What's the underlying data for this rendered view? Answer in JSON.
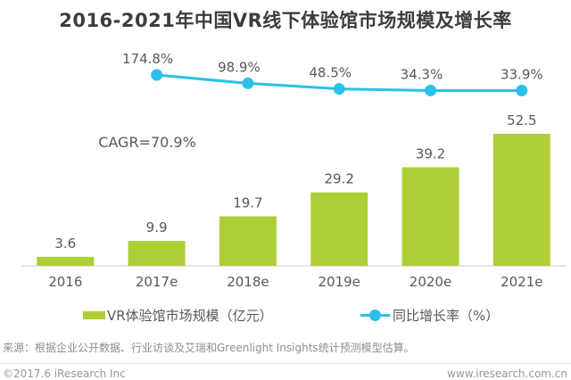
{
  "title": "2016-2021年中国VR线下体验馆市场规模及增长率",
  "chart_data": {
    "type": "bar+line combo",
    "title": "2016-2021年中国VR线下体验馆市场规模及增长率",
    "categories": [
      "2016",
      "2017e",
      "2018e",
      "2019e",
      "2020e",
      "2021e"
    ],
    "series": [
      {
        "name": "VR体验馆市场规模（亿元）",
        "type": "bar",
        "values": [
          3.6,
          9.9,
          19.7,
          29.2,
          39.2,
          52.5
        ],
        "color": "#aecf38"
      },
      {
        "name": "同比增长率（%）",
        "type": "line",
        "values": [
          null,
          174.8,
          98.9,
          48.5,
          34.3,
          33.9
        ],
        "color": "#2bc0e8"
      }
    ],
    "bar_value_labels": [
      "3.6",
      "9.9",
      "19.7",
      "29.2",
      "39.2",
      "52.5"
    ],
    "line_value_labels": [
      "174.8%",
      "98.9%",
      "48.5%",
      "34.3%",
      "33.9%"
    ],
    "annotation": "CAGR=70.9%",
    "grid": false,
    "y_axis_visible": false,
    "legend_position": "bottom"
  },
  "legend": {
    "bar_label": "VR体验馆市场规模（亿元）",
    "line_label": "同比增长率（%）"
  },
  "source_note": "来源：根据企业公开数据、行业访谈及艾瑞和Greenlight Insights统计预测模型估算。",
  "footer": {
    "copyright": "©2017.6 iResearch Inc",
    "url": "www.iresearch.com.cn"
  },
  "colors": {
    "bar": "#aecf38",
    "line": "#2bc0e8",
    "title_text": "#3d3d3d",
    "label_text": "#595959",
    "muted_text": "#8e8e8e",
    "axis_line": "#c9c9c9"
  }
}
